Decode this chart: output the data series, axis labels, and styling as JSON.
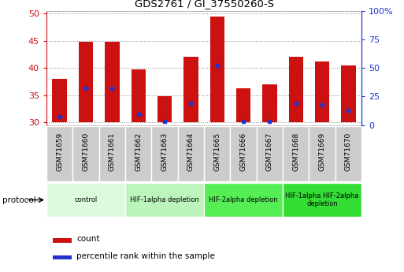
{
  "title": "GDS2761 / GI_37550260-S",
  "samples": [
    "GSM71659",
    "GSM71660",
    "GSM71661",
    "GSM71662",
    "GSM71663",
    "GSM71664",
    "GSM71665",
    "GSM71666",
    "GSM71667",
    "GSM71668",
    "GSM71669",
    "GSM71670"
  ],
  "count_values": [
    38.0,
    44.8,
    44.8,
    39.8,
    34.8,
    42.0,
    49.5,
    36.2,
    37.0,
    42.0,
    41.2,
    40.5
  ],
  "percentile_values": [
    31.0,
    36.2,
    36.2,
    31.5,
    30.2,
    33.5,
    40.5,
    30.2,
    30.2,
    33.5,
    33.2,
    32.2
  ],
  "bar_bottom": 30,
  "ylim_left": [
    29.5,
    50.5
  ],
  "ylim_right": [
    0,
    100
  ],
  "yticks_left": [
    30,
    35,
    40,
    45,
    50
  ],
  "ytick_labels_left": [
    "30",
    "35",
    "40",
    "45",
    "50"
  ],
  "yticks_right": [
    0,
    25,
    50,
    75,
    100
  ],
  "ytick_labels_right": [
    "0",
    "25",
    "50",
    "75",
    "100%"
  ],
  "bar_color": "#cc1111",
  "percentile_color": "#2233cc",
  "bar_width": 0.55,
  "protocols": [
    {
      "label": "control",
      "start": 0,
      "end": 3,
      "color": "#ddfadd"
    },
    {
      "label": "HIF-1alpha depletion",
      "start": 3,
      "end": 6,
      "color": "#bbf5bb"
    },
    {
      "label": "HIF-2alpha depletion",
      "start": 6,
      "end": 9,
      "color": "#55ee55"
    },
    {
      "label": "HIF-1alpha HIF-2alpha\ndepletion",
      "start": 9,
      "end": 12,
      "color": "#33dd33"
    }
  ],
  "tick_bg_color": "#cccccc",
  "tick_border_color": "#ffffff",
  "left_axis_color": "#cc1111",
  "right_axis_color": "#2233cc",
  "grid_color": "#888888",
  "legend_count_label": "count",
  "legend_percentile_label": "percentile rank within the sample",
  "protocol_label": "protocol"
}
